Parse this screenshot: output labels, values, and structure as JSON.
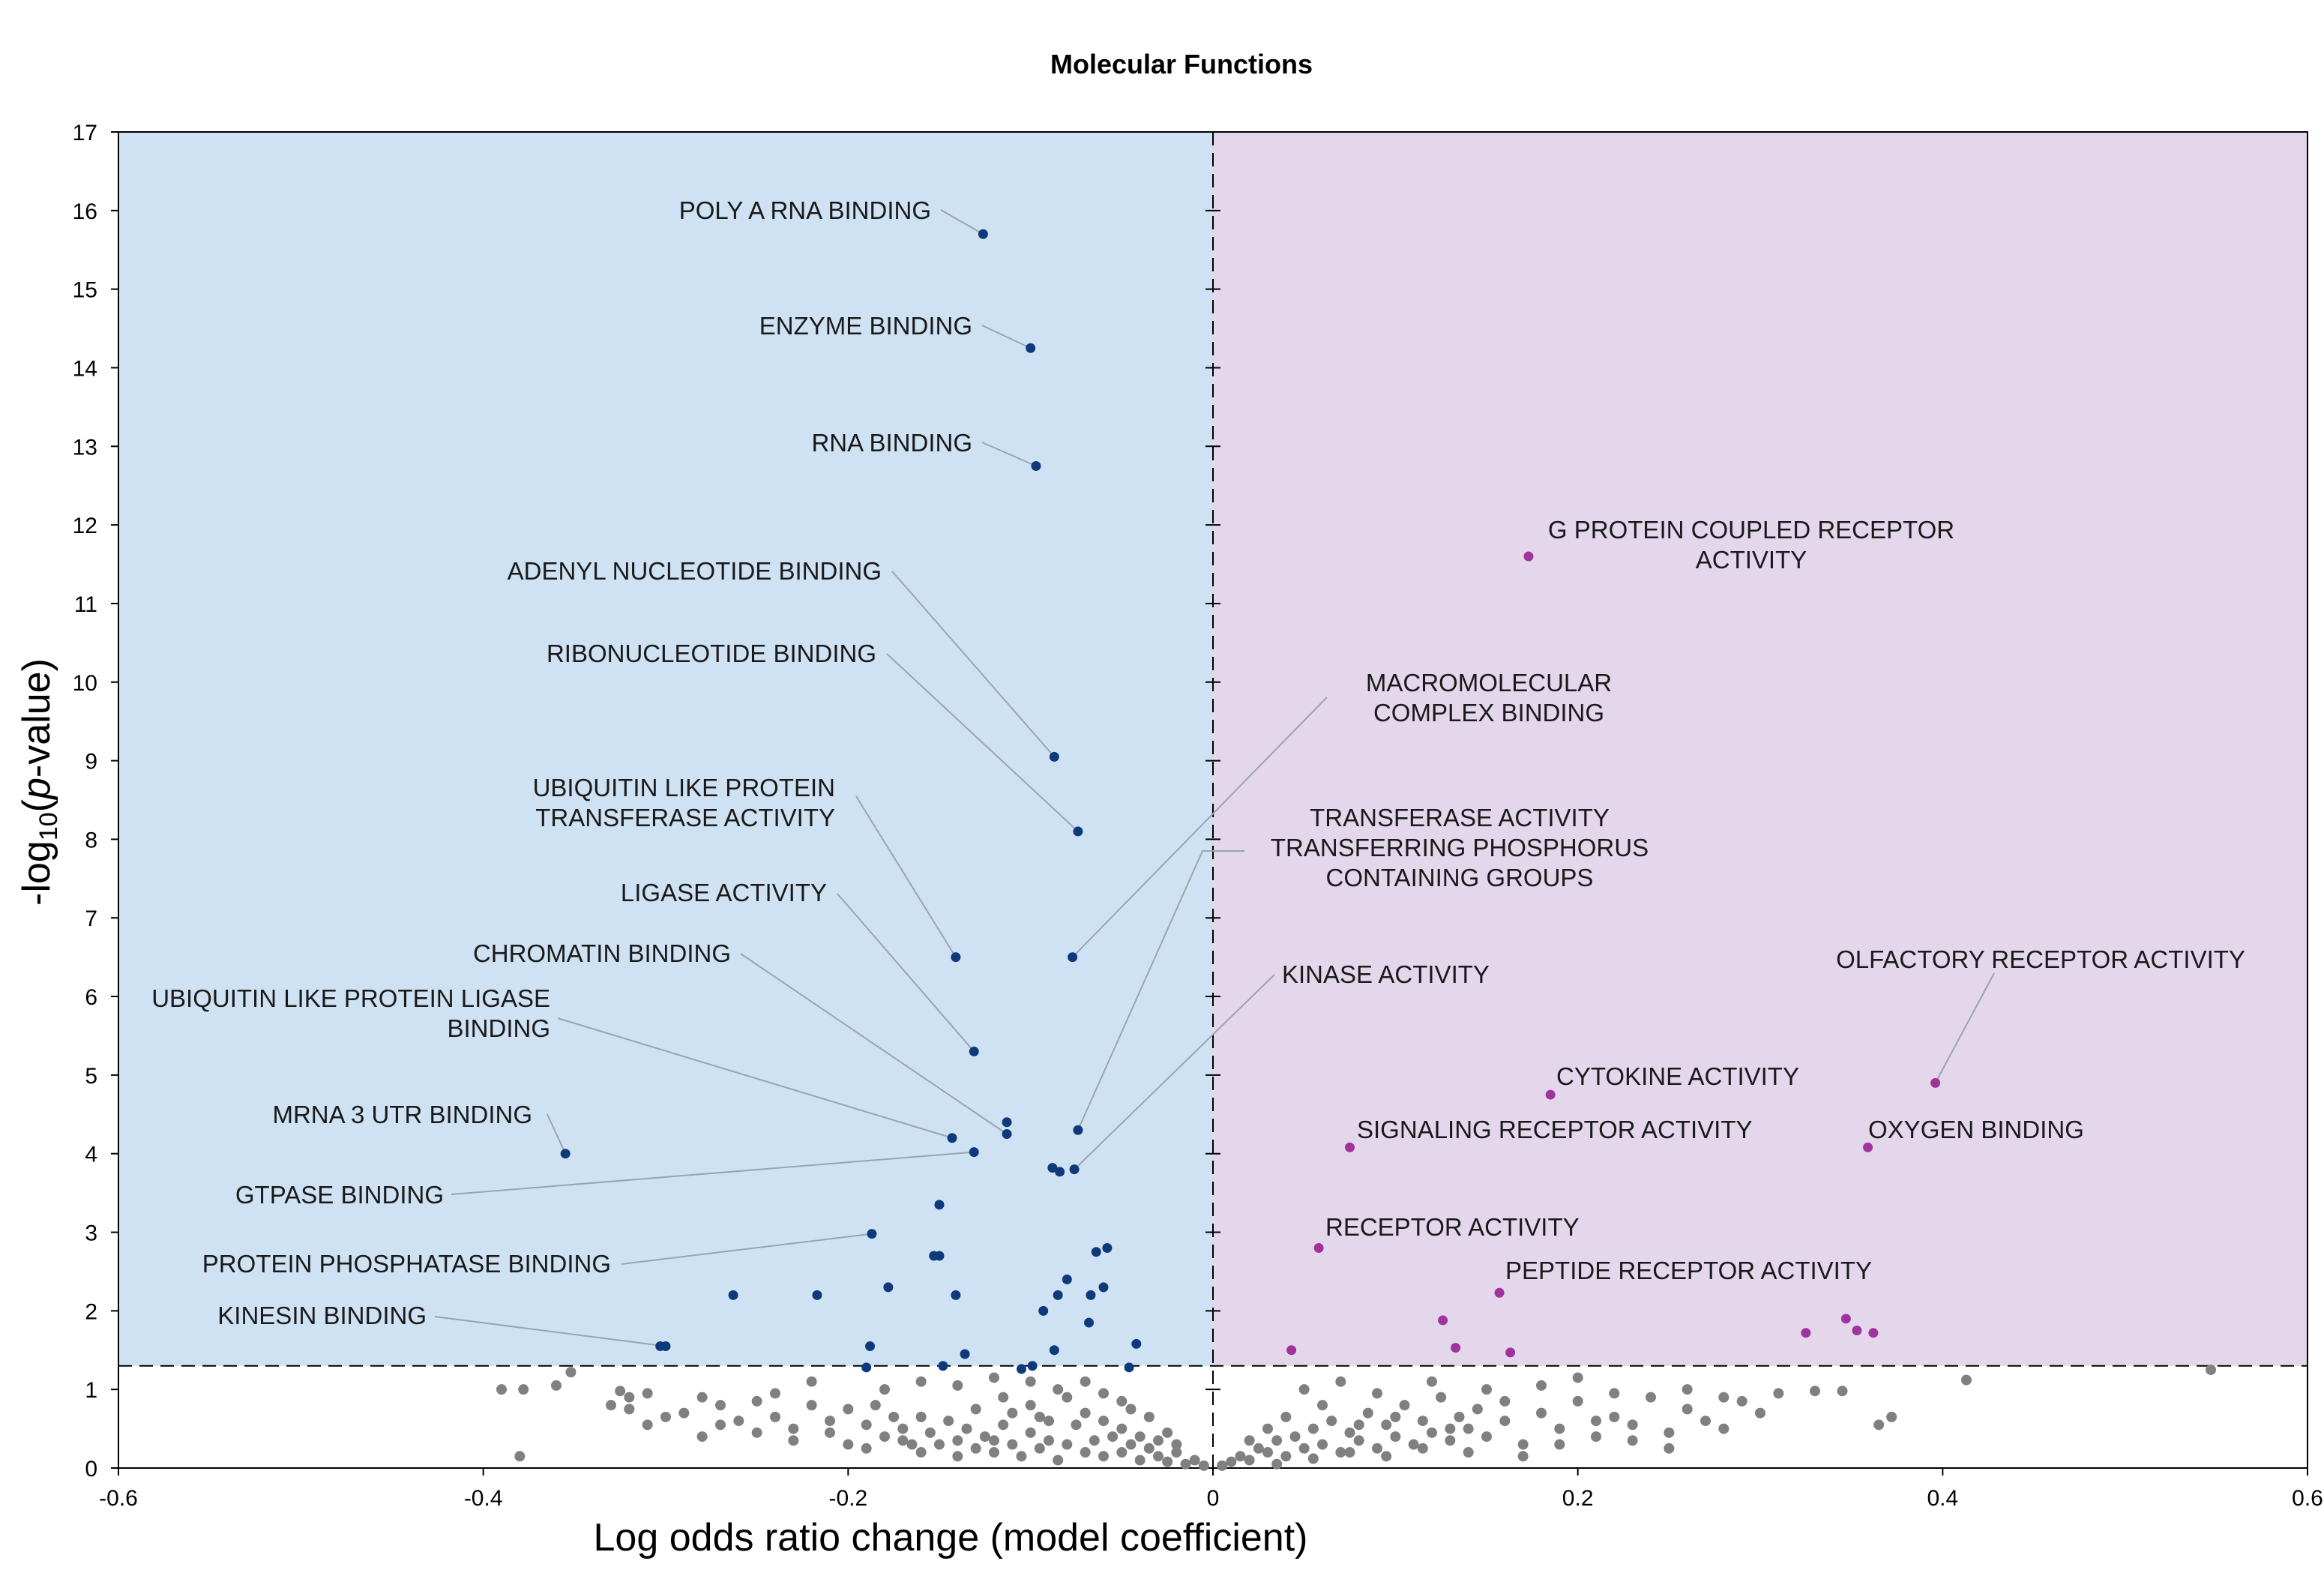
{
  "chart_data": {
    "type": "scatter",
    "title": "Molecular Functions",
    "xlabel": "Log odds ratio change (model coefficient)",
    "ylabel_main": "-log",
    "ylabel_sub": "10",
    "ylabel_open": "(",
    "ylabel_italic": "p",
    "ylabel_end": "-value)",
    "xlim": [
      -0.6,
      0.6
    ],
    "ylim": [
      0,
      17
    ],
    "x_ticks": [
      "-0.6",
      "-0.4",
      "-0.2",
      "0",
      "0.2",
      "0.4",
      "0.6"
    ],
    "y_ticks": [
      "0",
      "1",
      "2",
      "3",
      "4",
      "5",
      "6",
      "7",
      "8",
      "9",
      "10",
      "11",
      "12",
      "13",
      "14",
      "15",
      "16",
      "17"
    ],
    "significance_threshold": 1.3,
    "zero_line_x": 0,
    "colors": {
      "negative_region": "#cfe2f3",
      "positive_region": "#e4d7ec",
      "negative_points": "#0e3a7b",
      "positive_points": "#a0339c",
      "nonsignificant_points": "#808080",
      "leader_line": "#9aa4ad"
    },
    "annotations": [
      {
        "lines": [
          "POLY A RNA BINDING"
        ],
        "x": -0.126,
        "y": 15.7,
        "side": "negative"
      },
      {
        "lines": [
          "ENZYME BINDING"
        ],
        "x": -0.1,
        "y": 14.25,
        "side": "negative"
      },
      {
        "lines": [
          "RNA BINDING"
        ],
        "x": -0.097,
        "y": 12.75,
        "side": "negative"
      },
      {
        "lines": [
          "ADENYL NUCLEOTIDE BINDING"
        ],
        "x": -0.087,
        "y": 9.05,
        "side": "negative"
      },
      {
        "lines": [
          "RIBONUCLEOTIDE BINDING"
        ],
        "x": -0.074,
        "y": 8.1,
        "side": "negative"
      },
      {
        "lines": [
          "UBIQUITIN LIKE PROTEIN",
          "TRANSFERASE ACTIVITY"
        ],
        "x": -0.141,
        "y": 6.5,
        "side": "negative"
      },
      {
        "lines": [
          "LIGASE ACTIVITY"
        ],
        "x": -0.131,
        "y": 5.3,
        "side": "negative"
      },
      {
        "lines": [
          "CHROMATIN BINDING"
        ],
        "x": -0.113,
        "y": 4.25,
        "side": "negative"
      },
      {
        "lines": [
          "UBIQUITIN LIKE PROTEIN LIGASE",
          "BINDING"
        ],
        "x": -0.143,
        "y": 4.2,
        "side": "negative"
      },
      {
        "lines": [
          "MRNA 3 UTR BINDING"
        ],
        "x": -0.355,
        "y": 4.0,
        "side": "negative"
      },
      {
        "lines": [
          "GTPASE BINDING"
        ],
        "x": -0.131,
        "y": 4.02,
        "side": "negative"
      },
      {
        "lines": [
          "PROTEIN PHOSPHATASE BINDING"
        ],
        "x": -0.187,
        "y": 2.98,
        "side": "negative"
      },
      {
        "lines": [
          "KINESIN BINDING"
        ],
        "x": -0.3,
        "y": 1.55,
        "side": "negative"
      },
      {
        "lines": [
          "MACROMOLECULAR",
          "COMPLEX BINDING"
        ],
        "x": -0.077,
        "y": 6.5,
        "side": "negative"
      },
      {
        "lines": [
          "TRANSFERASE ACTIVITY",
          "TRANSFERRING PHOSPHORUS",
          "CONTAINING GROUPS"
        ],
        "x": -0.074,
        "y": 4.3,
        "side": "negative"
      },
      {
        "lines": [
          "KINASE ACTIVITY"
        ],
        "x": -0.076,
        "y": 3.8,
        "side": "negative"
      },
      {
        "lines": [
          "G PROTEIN COUPLED RECEPTOR",
          "ACTIVITY"
        ],
        "x": 0.173,
        "y": 11.6,
        "side": "positive"
      },
      {
        "lines": [
          "OLFACTORY RECEPTOR ACTIVITY"
        ],
        "x": 0.396,
        "y": 4.9,
        "side": "positive"
      },
      {
        "lines": [
          "CYTOKINE ACTIVITY"
        ],
        "x": 0.185,
        "y": 4.75,
        "side": "positive"
      },
      {
        "lines": [
          "SIGNALING RECEPTOR ACTIVITY"
        ],
        "x": 0.075,
        "y": 4.08,
        "side": "positive"
      },
      {
        "lines": [
          "OXYGEN BINDING"
        ],
        "x": 0.359,
        "y": 4.08,
        "side": "positive"
      },
      {
        "lines": [
          "RECEPTOR ACTIVITY"
        ],
        "x": 0.058,
        "y": 2.8,
        "side": "positive"
      },
      {
        "lines": [
          "PEPTIDE RECEPTOR ACTIVITY"
        ],
        "x": 0.157,
        "y": 2.23,
        "side": "positive"
      }
    ],
    "series": [
      {
        "name": "negative significant",
        "points": [
          [
            -0.126,
            15.7
          ],
          [
            -0.1,
            14.25
          ],
          [
            -0.097,
            12.75
          ],
          [
            -0.087,
            9.05
          ],
          [
            -0.074,
            8.1
          ],
          [
            -0.141,
            6.5
          ],
          [
            -0.077,
            6.5
          ],
          [
            -0.131,
            5.3
          ],
          [
            -0.113,
            4.4
          ],
          [
            -0.113,
            4.25
          ],
          [
            -0.143,
            4.2
          ],
          [
            -0.074,
            4.3
          ],
          [
            -0.131,
            4.02
          ],
          [
            -0.355,
            4.0
          ],
          [
            -0.088,
            3.82
          ],
          [
            -0.084,
            3.77
          ],
          [
            -0.076,
            3.8
          ],
          [
            -0.15,
            3.35
          ],
          [
            -0.187,
            2.98
          ],
          [
            -0.153,
            2.7
          ],
          [
            -0.15,
            2.7
          ],
          [
            -0.064,
            2.75
          ],
          [
            -0.058,
            2.8
          ],
          [
            -0.08,
            2.4
          ],
          [
            -0.06,
            2.3
          ],
          [
            -0.178,
            2.3
          ],
          [
            -0.263,
            2.2
          ],
          [
            -0.217,
            2.2
          ],
          [
            -0.141,
            2.2
          ],
          [
            -0.085,
            2.2
          ],
          [
            -0.067,
            2.2
          ],
          [
            -0.093,
            2.0
          ],
          [
            -0.068,
            1.85
          ],
          [
            -0.3,
            1.55
          ],
          [
            -0.303,
            1.55
          ],
          [
            -0.188,
            1.55
          ],
          [
            -0.042,
            1.58
          ],
          [
            -0.087,
            1.5
          ],
          [
            -0.136,
            1.45
          ],
          [
            -0.19,
            1.28
          ],
          [
            -0.148,
            1.3
          ],
          [
            -0.105,
            1.26
          ],
          [
            -0.099,
            1.3
          ],
          [
            -0.046,
            1.28
          ]
        ]
      },
      {
        "name": "positive significant",
        "points": [
          [
            0.173,
            11.6
          ],
          [
            0.396,
            4.9
          ],
          [
            0.185,
            4.75
          ],
          [
            0.075,
            4.08
          ],
          [
            0.359,
            4.08
          ],
          [
            0.058,
            2.8
          ],
          [
            0.157,
            2.23
          ],
          [
            0.126,
            1.88
          ],
          [
            0.347,
            1.9
          ],
          [
            0.353,
            1.75
          ],
          [
            0.362,
            1.72
          ],
          [
            0.325,
            1.72
          ],
          [
            0.043,
            1.5
          ],
          [
            0.133,
            1.53
          ],
          [
            0.163,
            1.47
          ]
        ]
      },
      {
        "name": "not significant",
        "points": [
          [
            -0.39,
            1.0
          ],
          [
            -0.378,
            1.0
          ],
          [
            -0.36,
            1.05
          ],
          [
            -0.352,
            1.22
          ],
          [
            -0.38,
            0.15
          ],
          [
            -0.325,
            0.98
          ],
          [
            -0.32,
            0.9
          ],
          [
            -0.31,
            0.95
          ],
          [
            -0.32,
            0.75
          ],
          [
            -0.3,
            0.65
          ],
          [
            -0.29,
            0.7
          ],
          [
            -0.28,
            0.9
          ],
          [
            -0.27,
            0.8
          ],
          [
            -0.26,
            0.6
          ],
          [
            -0.25,
            0.85
          ],
          [
            -0.24,
            0.65
          ],
          [
            -0.23,
            0.5
          ],
          [
            -0.22,
            0.8
          ],
          [
            -0.21,
            0.6
          ],
          [
            -0.2,
            0.75
          ],
          [
            -0.19,
            0.55
          ],
          [
            -0.18,
            0.4
          ],
          [
            -0.17,
            0.5
          ],
          [
            -0.165,
            0.3
          ],
          [
            -0.16,
            0.65
          ],
          [
            -0.155,
            0.45
          ],
          [
            -0.15,
            0.3
          ],
          [
            -0.145,
            0.6
          ],
          [
            -0.14,
            0.35
          ],
          [
            -0.135,
            0.5
          ],
          [
            -0.13,
            0.25
          ],
          [
            -0.125,
            0.4
          ],
          [
            -0.12,
            0.2
          ],
          [
            -0.115,
            0.55
          ],
          [
            -0.11,
            0.3
          ],
          [
            -0.105,
            0.15
          ],
          [
            -0.1,
            0.45
          ],
          [
            -0.095,
            0.25
          ],
          [
            -0.09,
            0.35
          ],
          [
            -0.085,
            0.1
          ],
          [
            -0.08,
            0.3
          ],
          [
            -0.075,
            0.55
          ],
          [
            -0.07,
            0.2
          ],
          [
            -0.065,
            0.35
          ],
          [
            -0.06,
            0.15
          ],
          [
            -0.055,
            0.4
          ],
          [
            -0.05,
            0.2
          ],
          [
            -0.045,
            0.3
          ],
          [
            -0.04,
            0.1
          ],
          [
            -0.035,
            0.25
          ],
          [
            -0.03,
            0.15
          ],
          [
            -0.025,
            0.08
          ],
          [
            -0.02,
            0.2
          ],
          [
            -0.015,
            0.05
          ],
          [
            -0.01,
            0.1
          ],
          [
            -0.005,
            0.03
          ],
          [
            -0.27,
            0.55
          ],
          [
            -0.25,
            0.45
          ],
          [
            -0.23,
            0.35
          ],
          [
            -0.21,
            0.45
          ],
          [
            -0.2,
            0.3
          ],
          [
            -0.19,
            0.25
          ],
          [
            -0.17,
            0.35
          ],
          [
            -0.16,
            0.2
          ],
          [
            -0.14,
            0.15
          ],
          [
            -0.12,
            0.35
          ],
          [
            -0.11,
            0.7
          ],
          [
            -0.1,
            0.8
          ],
          [
            -0.09,
            0.6
          ],
          [
            -0.08,
            0.9
          ],
          [
            -0.07,
            0.7
          ],
          [
            -0.06,
            0.6
          ],
          [
            -0.05,
            0.5
          ],
          [
            -0.04,
            0.4
          ],
          [
            -0.03,
            0.35
          ],
          [
            -0.02,
            0.3
          ],
          [
            -0.33,
            0.8
          ],
          [
            -0.31,
            0.55
          ],
          [
            -0.28,
            0.4
          ],
          [
            -0.24,
            0.95
          ],
          [
            -0.22,
            1.1
          ],
          [
            -0.18,
            1.0
          ],
          [
            -0.16,
            1.1
          ],
          [
            -0.14,
            1.05
          ],
          [
            -0.12,
            1.15
          ],
          [
            -0.1,
            1.1
          ],
          [
            -0.085,
            1.0
          ],
          [
            -0.07,
            1.1
          ],
          [
            -0.05,
            0.85
          ],
          [
            -0.035,
            0.65
          ],
          [
            -0.025,
            0.45
          ],
          [
            -0.185,
            0.8
          ],
          [
            -0.175,
            0.65
          ],
          [
            -0.13,
            0.75
          ],
          [
            -0.115,
            0.9
          ],
          [
            -0.095,
            0.65
          ],
          [
            -0.06,
            0.95
          ],
          [
            -0.045,
            0.75
          ],
          [
            0.005,
            0.03
          ],
          [
            0.01,
            0.08
          ],
          [
            0.015,
            0.15
          ],
          [
            0.02,
            0.1
          ],
          [
            0.025,
            0.25
          ],
          [
            0.03,
            0.2
          ],
          [
            0.035,
            0.35
          ],
          [
            0.04,
            0.15
          ],
          [
            0.045,
            0.4
          ],
          [
            0.05,
            0.25
          ],
          [
            0.055,
            0.5
          ],
          [
            0.06,
            0.3
          ],
          [
            0.065,
            0.6
          ],
          [
            0.07,
            0.2
          ],
          [
            0.075,
            0.45
          ],
          [
            0.08,
            0.35
          ],
          [
            0.085,
            0.7
          ],
          [
            0.09,
            0.25
          ],
          [
            0.095,
            0.55
          ],
          [
            0.1,
            0.4
          ],
          [
            0.105,
            0.8
          ],
          [
            0.11,
            0.3
          ],
          [
            0.115,
            0.6
          ],
          [
            0.12,
            0.45
          ],
          [
            0.125,
            0.9
          ],
          [
            0.13,
            0.35
          ],
          [
            0.135,
            0.65
          ],
          [
            0.14,
            0.5
          ],
          [
            0.145,
            0.75
          ],
          [
            0.15,
            0.4
          ],
          [
            0.16,
            0.6
          ],
          [
            0.17,
            0.3
          ],
          [
            0.18,
            0.7
          ],
          [
            0.19,
            0.5
          ],
          [
            0.2,
            0.85
          ],
          [
            0.21,
            0.4
          ],
          [
            0.22,
            0.65
          ],
          [
            0.23,
            0.55
          ],
          [
            0.24,
            0.9
          ],
          [
            0.25,
            0.45
          ],
          [
            0.26,
            0.75
          ],
          [
            0.27,
            0.6
          ],
          [
            0.28,
            0.5
          ],
          [
            0.29,
            0.85
          ],
          [
            0.3,
            0.7
          ],
          [
            0.31,
            0.95
          ],
          [
            0.33,
            0.98
          ],
          [
            0.345,
            0.98
          ],
          [
            0.365,
            0.55
          ],
          [
            0.372,
            0.65
          ],
          [
            0.413,
            1.12
          ],
          [
            0.547,
            1.25
          ],
          [
            0.05,
            1.0
          ],
          [
            0.07,
            1.1
          ],
          [
            0.09,
            0.95
          ],
          [
            0.12,
            1.1
          ],
          [
            0.15,
            1.0
          ],
          [
            0.18,
            1.05
          ],
          [
            0.2,
            1.15
          ],
          [
            0.22,
            0.95
          ],
          [
            0.26,
            1.0
          ],
          [
            0.28,
            0.9
          ],
          [
            0.03,
            0.5
          ],
          [
            0.04,
            0.65
          ],
          [
            0.06,
            0.8
          ],
          [
            0.08,
            0.55
          ],
          [
            0.1,
            0.65
          ],
          [
            0.13,
            0.5
          ],
          [
            0.16,
            0.85
          ],
          [
            0.19,
            0.3
          ],
          [
            0.21,
            0.6
          ],
          [
            0.23,
            0.35
          ],
          [
            0.25,
            0.25
          ],
          [
            0.02,
            0.35
          ],
          [
            0.035,
            0.05
          ],
          [
            0.055,
            0.12
          ],
          [
            0.075,
            0.2
          ],
          [
            0.095,
            0.15
          ],
          [
            0.115,
            0.25
          ],
          [
            0.14,
            0.2
          ],
          [
            0.17,
            0.15
          ]
        ]
      }
    ]
  }
}
